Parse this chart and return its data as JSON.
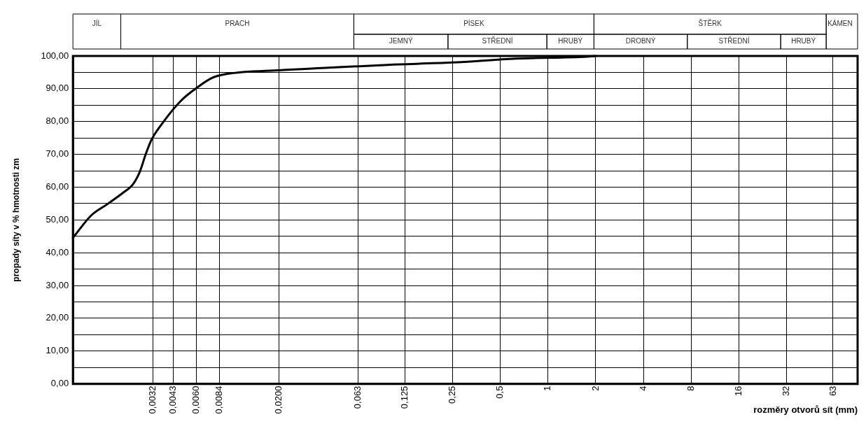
{
  "chart_data": {
    "type": "line",
    "xlabel": "rozměry otvorů sít (mm)",
    "ylabel": "propady síty v % hmotnosti zm",
    "annotations": [
      "JÍL",
      "PRACH",
      "PÍSEK",
      "JEMNÝ",
      "STŘEDNÍ",
      "HRUBÝ",
      "ŠTĚRK",
      "DROBNÝ",
      "STŘEDNÍ",
      "HRUBÝ",
      "KÁMEN"
    ],
    "log": "x",
    "grid": true,
    "legend": false,
    "marker": "none",
    "line_style": "solid",
    "xlim": [
      0.001,
      90
    ],
    "xticks": [
      {
        "value": 0.0032,
        "label": "0,0032"
      },
      {
        "value": 0.0043,
        "label": "0,0043"
      },
      {
        "value": 0.006,
        "label": "0,0060"
      },
      {
        "value": 0.0084,
        "label": "0,0084"
      },
      {
        "value": 0.02,
        "label": "0,0200"
      },
      {
        "value": 0.063,
        "label": "0,063"
      },
      {
        "value": 0.125,
        "label": "0,125"
      },
      {
        "value": 0.25,
        "label": "0,25"
      },
      {
        "value": 0.5,
        "label": "0,5"
      },
      1,
      2,
      4,
      8,
      16,
      32,
      63
    ],
    "ylim": [
      0,
      100
    ],
    "yticks": [
      {
        "value": 0,
        "label": "0,00"
      },
      {
        "value": 5,
        "label": null
      },
      {
        "value": 10,
        "label": "10,00"
      },
      {
        "value": 15,
        "label": null
      },
      {
        "value": 20,
        "label": "20,00"
      },
      {
        "value": 25,
        "label": null
      },
      {
        "value": 30,
        "label": "30,00"
      },
      {
        "value": 35,
        "label": null
      },
      {
        "value": 40,
        "label": "40,00"
      },
      {
        "value": 45,
        "label": null
      },
      {
        "value": 50,
        "label": "50,00"
      },
      {
        "value": 55,
        "label": null
      },
      {
        "value": 60,
        "label": "60,00"
      },
      {
        "value": 65,
        "label": null
      },
      {
        "value": 70,
        "label": "70,00"
      },
      {
        "value": 75,
        "label": null
      },
      {
        "value": 80,
        "label": "80,00"
      },
      {
        "value": 85,
        "label": null
      },
      {
        "value": 90,
        "label": "90,00"
      },
      {
        "value": 95,
        "label": null
      },
      {
        "value": 100,
        "label": "100,00"
      }
    ],
    "x": [
      0.001,
      0.0013,
      0.00166,
      0.0021,
      0.00238,
      0.00264,
      0.00288,
      0.00313,
      0.00366,
      0.0048,
      0.0061,
      0.00755,
      0.0093,
      0.0206,
      0.041,
      0.0975,
      0.247,
      0.63,
      1.76,
      2
    ],
    "series": [
      {
        "color": "#000000",
        "values": [
          44.5,
          51.3,
          54.9,
          58.5,
          60.7,
          64.6,
          70.0,
          74.4,
          79.4,
          86.3,
          90.4,
          93.3,
          94.5,
          95.7,
          96.4,
          97.3,
          98.0,
          99.2,
          99.8,
          100
        ]
      }
    ]
  }
}
